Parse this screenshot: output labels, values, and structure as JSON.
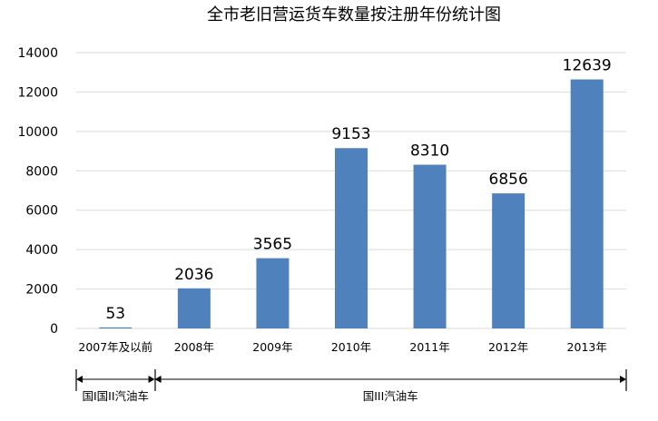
{
  "chart_data": {
    "type": "bar",
    "title": "全市老旧营运货车数量按注册年份统计图",
    "categories": [
      "2007年及以前",
      "2008年",
      "2009年",
      "2010年",
      "2011年",
      "2012年",
      "2013年"
    ],
    "values": [
      53,
      2036,
      3565,
      9153,
      8310,
      6856,
      12639
    ],
    "data_labels": [
      "53",
      "2036",
      "3565",
      "9153",
      "8310",
      "6856",
      "12639"
    ],
    "ylim": [
      0,
      14000
    ],
    "yticks": [
      0,
      2000,
      4000,
      6000,
      8000,
      10000,
      12000,
      14000
    ],
    "ytick_labels": [
      "0",
      "2000",
      "4000",
      "6000",
      "8000",
      "10000",
      "12000",
      "14000"
    ],
    "xlabel": "",
    "ylabel": "",
    "grid": true,
    "bar_color": "#4f81bd",
    "grid_color": "#d9d9d9",
    "annotations": [
      {
        "label": "国I国II汽油车",
        "from_category": 0,
        "to_category": 0
      },
      {
        "label": "国III汽油车",
        "from_category": 1,
        "to_category": 6
      }
    ]
  }
}
